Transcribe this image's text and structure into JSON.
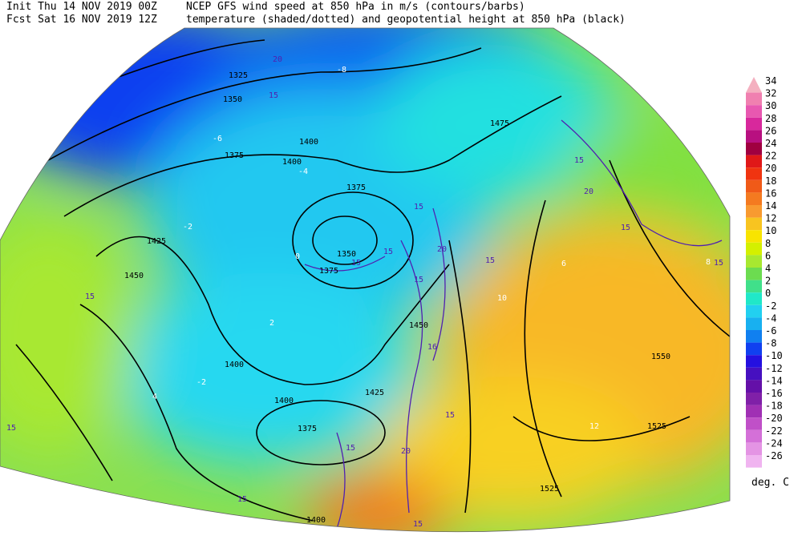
{
  "header": {
    "init": "Init  Thu 14 NOV 2019 00Z",
    "fcst": "Fcst Sat 16 NOV 2019 12Z",
    "line1": "NCEP GFS wind speed at 850 hPa in m/s (contours/barbs)",
    "line2": "temperature (shaded/dotted) and geopotential height at 850 hPa (black)"
  },
  "colorbar": {
    "values": [
      34,
      32,
      30,
      28,
      26,
      24,
      22,
      20,
      18,
      16,
      14,
      12,
      10,
      8,
      6,
      4,
      2,
      0,
      -2,
      -4,
      -6,
      -8,
      -10,
      -12,
      -14,
      -16,
      -18,
      -20,
      -22,
      -24,
      -26
    ],
    "colors": [
      "#f4b0c0",
      "#f080b0",
      "#e858b0",
      "#d8289c",
      "#b81080",
      "#a00040",
      "#e01818",
      "#f03410",
      "#f05a18",
      "#f47a20",
      "#f89a30",
      "#f8c420",
      "#f8e400",
      "#d4f000",
      "#a8e830",
      "#6cdc50",
      "#40e08a",
      "#20e8c8",
      "#22d0f0",
      "#18b0f0",
      "#1080f0",
      "#1040f0",
      "#2410e0",
      "#4610c0",
      "#6410a8",
      "#8020a8",
      "#a030b4",
      "#c050c8",
      "#d470d8",
      "#e494e4",
      "#f0b4f0"
    ],
    "units": "deg. C"
  },
  "height_labels": [
    "1325",
    "1350",
    "1375",
    "1400",
    "1400",
    "1375",
    "1425",
    "1450",
    "1350",
    "1375",
    "1450",
    "1400",
    "1400",
    "1375",
    "1425",
    "1475",
    "1550",
    "1525",
    "1525",
    "1400"
  ],
  "wind_labels": [
    "15",
    "20",
    "15",
    "20",
    "15",
    "15",
    "15",
    "20",
    "15",
    "15",
    "15",
    "15",
    "15",
    "15",
    "15",
    "15",
    "20",
    "15",
    "15",
    "16"
  ],
  "temp_labels": [
    "-6",
    "-4",
    "-2",
    "0",
    "2",
    "4",
    "6",
    "8",
    "10",
    "12",
    "-8",
    "-2"
  ]
}
